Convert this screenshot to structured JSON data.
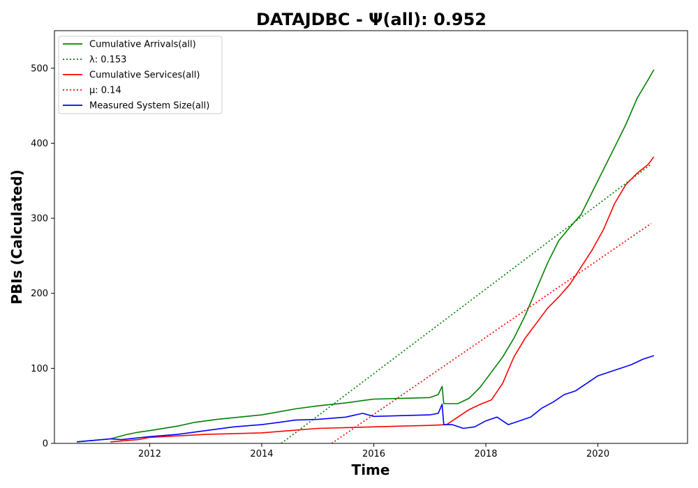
{
  "chart_data": {
    "type": "line",
    "title": "DATAJDBC -  Ψ(all): 0.952",
    "xlabel": "Time",
    "ylabel": "PBIs (Calculated)",
    "xlim": [
      2010.3,
      2021.6
    ],
    "ylim": [
      0,
      550
    ],
    "x_ticks": [
      2012,
      2014,
      2016,
      2018,
      2020
    ],
    "y_ticks": [
      0,
      100,
      200,
      300,
      400,
      500
    ],
    "grid": false,
    "legend_position": "upper-left",
    "legend": [
      {
        "label": "Cumulative Arrivals(all)",
        "color": "#008000",
        "style": "solid"
      },
      {
        "label": "λ: 0.153",
        "color": "#008000",
        "style": "dotted"
      },
      {
        "label": "Cumulative Services(all)",
        "color": "#ff0000",
        "style": "solid"
      },
      {
        "label": "μ: 0.14",
        "color": "#ff0000",
        "style": "dotted"
      },
      {
        "label": "Measured System Size(all)",
        "color": "#0000ff",
        "style": "solid"
      }
    ],
    "series": [
      {
        "name": "Cumulative Arrivals(all)",
        "color": "#008000",
        "style": "solid",
        "x": [
          2010.7,
          2011.0,
          2011.3,
          2011.6,
          2011.8,
          2012.0,
          2012.5,
          2012.8,
          2013.2,
          2013.6,
          2014.0,
          2014.3,
          2014.6,
          2015.0,
          2015.5,
          2015.8,
          2016.0,
          2016.5,
          2017.0,
          2017.15,
          2017.22,
          2017.25,
          2017.5,
          2017.7,
          2017.9,
          2018.1,
          2018.3,
          2018.5,
          2018.7,
          2018.9,
          2019.1,
          2019.3,
          2019.5,
          2019.7,
          2019.9,
          2020.1,
          2020.3,
          2020.5,
          2020.7,
          2020.9,
          2021.0
        ],
        "y": [
          2,
          4,
          6,
          12,
          15,
          17,
          23,
          28,
          32,
          35,
          38,
          42,
          46,
          50,
          54,
          57,
          59,
          60,
          61,
          65,
          76,
          53,
          53,
          60,
          75,
          95,
          115,
          140,
          170,
          205,
          240,
          270,
          288,
          305,
          335,
          365,
          395,
          425,
          460,
          485,
          498
        ]
      },
      {
        "name": "λ: 0.153",
        "color": "#008000",
        "style": "dotted",
        "x": [
          2014.35,
          2020.95
        ],
        "y": [
          0,
          372
        ]
      },
      {
        "name": "Cumulative Services(all)",
        "color": "#ff0000",
        "style": "solid",
        "x": [
          2011.3,
          2011.8,
          2012.0,
          2013.0,
          2014.0,
          2014.5,
          2015.0,
          2015.5,
          2016.0,
          2016.5,
          2017.0,
          2017.3,
          2017.5,
          2017.7,
          2017.9,
          2018.1,
          2018.3,
          2018.5,
          2018.7,
          2018.9,
          2019.1,
          2019.3,
          2019.5,
          2019.7,
          2019.9,
          2020.1,
          2020.3,
          2020.5,
          2020.7,
          2020.9,
          2021.0
        ],
        "y": [
          2,
          5,
          8,
          12,
          14,
          17,
          20,
          21,
          22,
          23,
          24,
          25,
          35,
          45,
          52,
          58,
          80,
          115,
          140,
          160,
          180,
          195,
          212,
          235,
          258,
          285,
          320,
          345,
          360,
          372,
          382
        ]
      },
      {
        "name": "μ: 0.14",
        "color": "#ff0000",
        "style": "dotted",
        "x": [
          2015.25,
          2020.95
        ],
        "y": [
          0,
          293
        ]
      },
      {
        "name": "Measured System Size(all)",
        "color": "#0000ff",
        "style": "solid",
        "x": [
          2010.7,
          2011.0,
          2011.3,
          2011.5,
          2012.0,
          2012.5,
          2013.0,
          2013.5,
          2014.0,
          2014.3,
          2014.6,
          2015.0,
          2015.5,
          2015.8,
          2016.0,
          2016.5,
          2017.0,
          2017.15,
          2017.22,
          2017.25,
          2017.4,
          2017.6,
          2017.8,
          2018.0,
          2018.2,
          2018.4,
          2018.6,
          2018.8,
          2019.0,
          2019.2,
          2019.4,
          2019.6,
          2019.8,
          2020.0,
          2020.2,
          2020.4,
          2020.6,
          2020.8,
          2021.0
        ],
        "y": [
          2,
          4,
          6,
          5,
          9,
          12,
          17,
          22,
          25,
          28,
          31,
          32,
          35,
          40,
          36,
          37,
          38,
          40,
          52,
          25,
          25,
          20,
          22,
          30,
          35,
          25,
          30,
          35,
          47,
          55,
          65,
          70,
          80,
          90,
          95,
          100,
          105,
          112,
          117
        ]
      }
    ]
  }
}
